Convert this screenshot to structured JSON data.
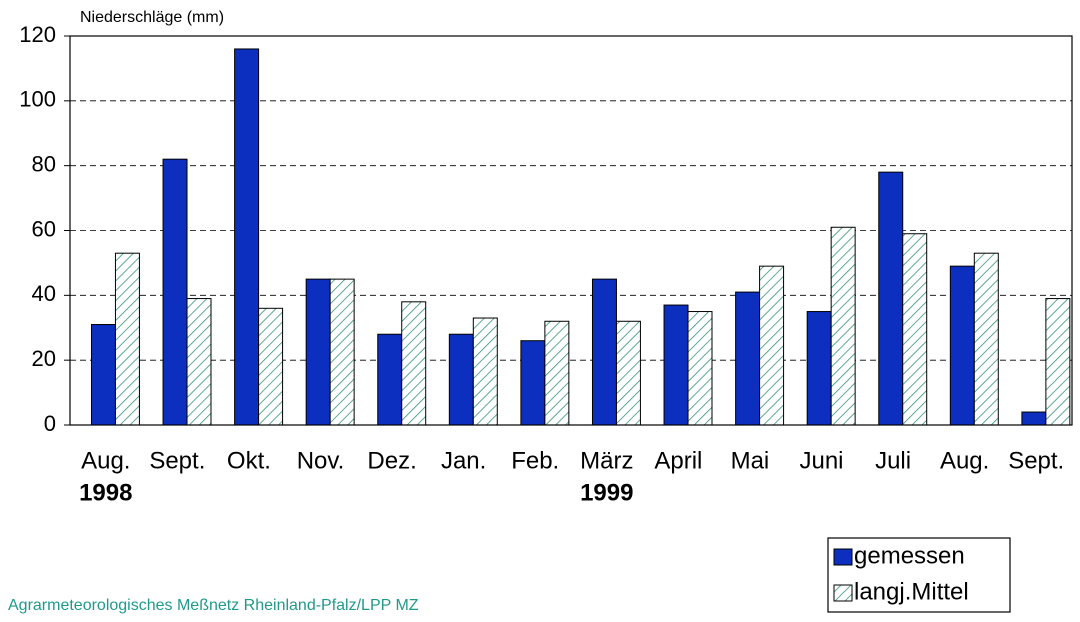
{
  "chart_data": {
    "type": "bar",
    "y_label": "Niederschläge (mm)",
    "categories": [
      "Aug.",
      "Sept.",
      "Okt.",
      "Nov.",
      "Dez.",
      "Jan.",
      "Feb.",
      "März",
      "April",
      "Mai",
      "Juni",
      "Juli",
      "Aug.",
      "Sept."
    ],
    "year_labels": [
      "1998",
      null,
      null,
      null,
      null,
      null,
      null,
      "1999",
      null,
      null,
      null,
      null,
      null,
      null
    ],
    "series": [
      {
        "name": "gemessen",
        "color": "#0c2fc0",
        "values": [
          31,
          82,
          116,
          45,
          28,
          28,
          26,
          45,
          37,
          41,
          35,
          78,
          49,
          4
        ]
      },
      {
        "name": "langj.Mittel",
        "color": "#2a8c70",
        "hatch": true,
        "values": [
          53,
          39,
          36,
          45,
          38,
          33,
          32,
          32,
          35,
          49,
          61,
          59,
          53,
          39
        ]
      }
    ],
    "ylim": [
      0,
      120
    ],
    "yticks": [
      0,
      20,
      40,
      60,
      80,
      100,
      120
    ],
    "grid": true,
    "legend": "bottom-right",
    "source": "Agrarmeteorologisches Meßnetz Rheinland-Pfalz/LPP MZ"
  }
}
